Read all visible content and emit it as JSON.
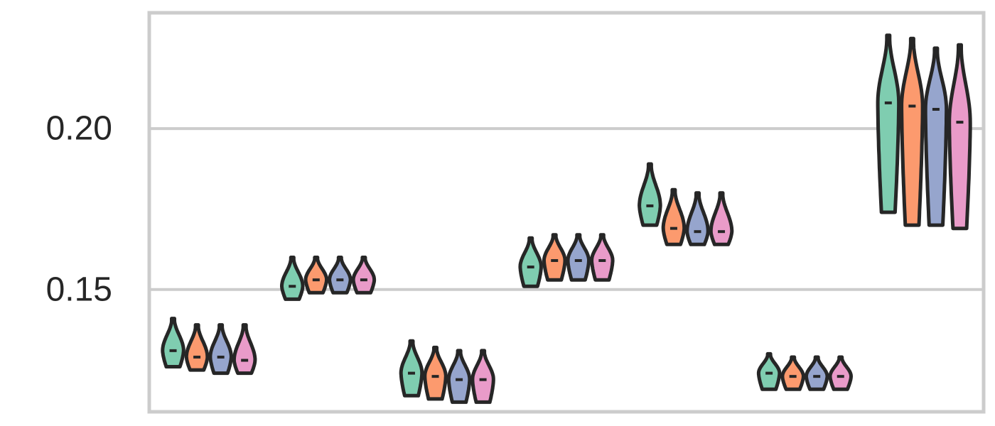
{
  "chart_data": {
    "type": "violin",
    "title": "",
    "xlabel": "",
    "ylabel": "",
    "ylim": [
      0.112,
      0.236
    ],
    "yticks": [
      {
        "value": 0.15,
        "label": "0.15"
      },
      {
        "value": 0.2,
        "label": "0.20"
      }
    ],
    "grid": "horizontal",
    "group_count": 7,
    "series_colors": [
      "#7fcdb0",
      "#fc9a6e",
      "#96a5cd",
      "#e99bc9"
    ],
    "outline_color": "#262626",
    "groups": [
      {
        "violins": [
          {
            "min": 0.126,
            "max": 0.141,
            "median": 0.131
          },
          {
            "min": 0.125,
            "max": 0.139,
            "median": 0.129
          },
          {
            "min": 0.124,
            "max": 0.139,
            "median": 0.129
          },
          {
            "min": 0.124,
            "max": 0.139,
            "median": 0.128
          }
        ]
      },
      {
        "violins": [
          {
            "min": 0.147,
            "max": 0.16,
            "median": 0.151
          },
          {
            "min": 0.149,
            "max": 0.16,
            "median": 0.153
          },
          {
            "min": 0.149,
            "max": 0.16,
            "median": 0.153
          },
          {
            "min": 0.149,
            "max": 0.16,
            "median": 0.153
          }
        ]
      },
      {
        "violins": [
          {
            "min": 0.117,
            "max": 0.134,
            "median": 0.124
          },
          {
            "min": 0.116,
            "max": 0.132,
            "median": 0.123
          },
          {
            "min": 0.115,
            "max": 0.131,
            "median": 0.122
          },
          {
            "min": 0.115,
            "max": 0.131,
            "median": 0.122
          }
        ]
      },
      {
        "violins": [
          {
            "min": 0.151,
            "max": 0.166,
            "median": 0.157
          },
          {
            "min": 0.153,
            "max": 0.167,
            "median": 0.159
          },
          {
            "min": 0.153,
            "max": 0.167,
            "median": 0.159
          },
          {
            "min": 0.153,
            "max": 0.167,
            "median": 0.159
          }
        ]
      },
      {
        "violins": [
          {
            "min": 0.17,
            "max": 0.189,
            "median": 0.176
          },
          {
            "min": 0.164,
            "max": 0.181,
            "median": 0.169
          },
          {
            "min": 0.164,
            "max": 0.18,
            "median": 0.168
          },
          {
            "min": 0.164,
            "max": 0.18,
            "median": 0.168
          }
        ]
      },
      {
        "violins": [
          {
            "min": 0.119,
            "max": 0.13,
            "median": 0.124
          },
          {
            "min": 0.119,
            "max": 0.129,
            "median": 0.123
          },
          {
            "min": 0.119,
            "max": 0.129,
            "median": 0.123
          },
          {
            "min": 0.119,
            "max": 0.129,
            "median": 0.123
          }
        ]
      },
      {
        "violins": [
          {
            "min": 0.174,
            "max": 0.229,
            "median": 0.208
          },
          {
            "min": 0.17,
            "max": 0.228,
            "median": 0.207
          },
          {
            "min": 0.17,
            "max": 0.225,
            "median": 0.206
          },
          {
            "min": 0.169,
            "max": 0.226,
            "median": 0.202
          }
        ]
      }
    ]
  }
}
